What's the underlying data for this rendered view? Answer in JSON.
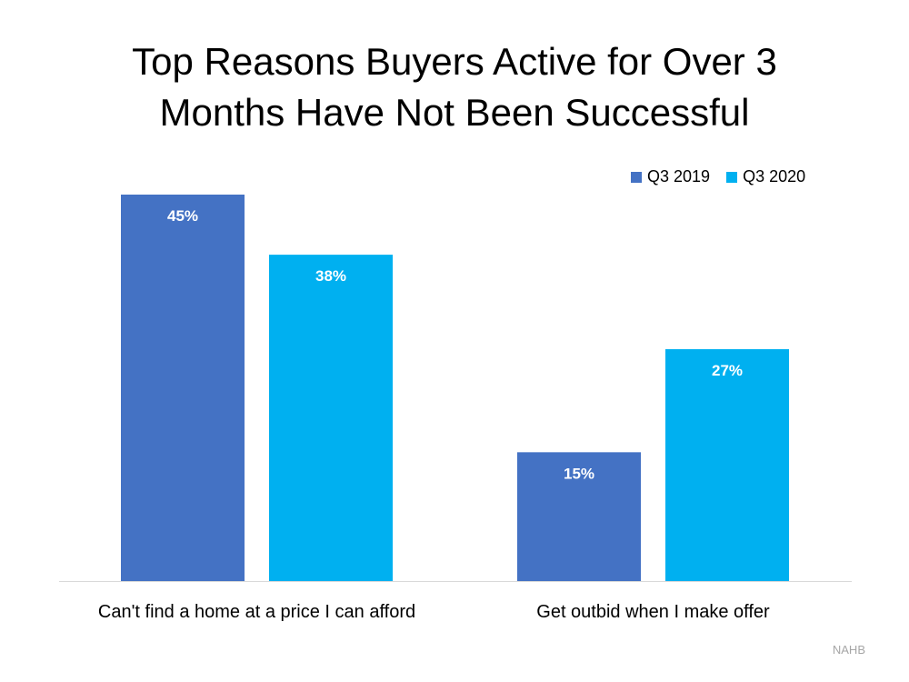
{
  "chart_data": {
    "type": "bar",
    "title": "Top Reasons Buyers Active for Over 3 Months Have Not Been Successful",
    "title_lines": [
      "Top Reasons Buyers Active for Over 3",
      "Months Have Not Been Successful"
    ],
    "categories": [
      "Can't find a home at a price I can afford",
      "Get outbid when I make offer"
    ],
    "series": [
      {
        "name": "Q3 2019",
        "values": [
          45,
          15
        ],
        "color": "#4472C4"
      },
      {
        "name": "Q3 2020",
        "values": [
          38,
          27
        ],
        "color": "#00B0F0"
      }
    ],
    "value_suffix": "%",
    "ylim": [
      0,
      45
    ],
    "grid": false,
    "legend_position": "top-right",
    "source": "NAHB"
  }
}
